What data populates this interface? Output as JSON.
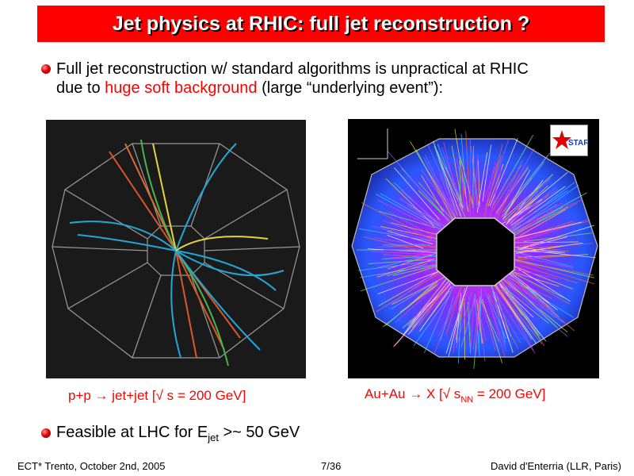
{
  "title": "Jet physics at RHIC: full jet reconstruction ?",
  "bullet1": {
    "line1": "Full jet reconstruction w/ standard algorithms is unpractical at RHIC",
    "line2_pre": "due to ",
    "line2_red": "huge soft background",
    "line2_post": " (large “underlying event”):"
  },
  "captions": {
    "pp_pre": "p+p → jet+jet  [√ s = 200 GeV]",
    "au_pre": "Au+Au →  X [√ s",
    "au_sub": "NN",
    "au_post": " = 200 GeV]"
  },
  "bullet2": {
    "pre": "Feasible at LHC for E",
    "sub": "jet",
    "post": " >~ 50 GeV"
  },
  "star_logo": "STAR",
  "footer": {
    "left": "ECT* Trento, October 2nd, 2005",
    "center": "7/36",
    "right": "David d'Enterria (LLR, Paris)"
  },
  "colors": {
    "title_bg": "#ff0000",
    "accent_red": "#ff0000"
  }
}
